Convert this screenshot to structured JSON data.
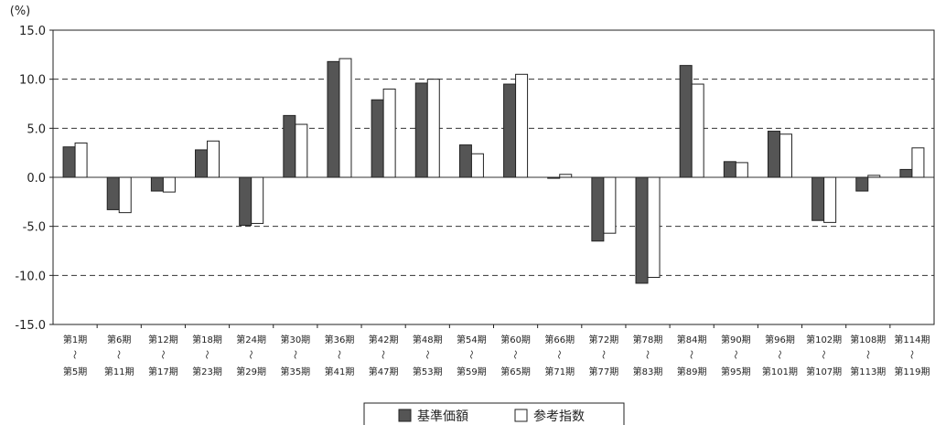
{
  "chart_data": {
    "type": "bar",
    "title": "",
    "xlabel": "",
    "ylabel": "",
    "unit_label": "(%)",
    "ylim": [
      -15.0,
      15.0
    ],
    "yticks": [
      "15.0",
      "10.0",
      "5.0",
      "0.0",
      "-5.0",
      "-10.0",
      "-15.0"
    ],
    "ytick_values": [
      15,
      10,
      5,
      0,
      -5,
      -10,
      -15
    ],
    "grid": "dashed-horizontal",
    "legend_position": "bottom-center",
    "categories": [
      {
        "top": "第1期",
        "sep": "〜",
        "bottom": "第5期"
      },
      {
        "top": "第6期",
        "sep": "〜",
        "bottom": "第11期"
      },
      {
        "top": "第12期",
        "sep": "〜",
        "bottom": "第17期"
      },
      {
        "top": "第18期",
        "sep": "〜",
        "bottom": "第23期"
      },
      {
        "top": "第24期",
        "sep": "〜",
        "bottom": "第29期"
      },
      {
        "top": "第30期",
        "sep": "〜",
        "bottom": "第35期"
      },
      {
        "top": "第36期",
        "sep": "〜",
        "bottom": "第41期"
      },
      {
        "top": "第42期",
        "sep": "〜",
        "bottom": "第47期"
      },
      {
        "top": "第48期",
        "sep": "〜",
        "bottom": "第53期"
      },
      {
        "top": "第54期",
        "sep": "〜",
        "bottom": "第59期"
      },
      {
        "top": "第60期",
        "sep": "〜",
        "bottom": "第65期"
      },
      {
        "top": "第66期",
        "sep": "〜",
        "bottom": "第71期"
      },
      {
        "top": "第72期",
        "sep": "〜",
        "bottom": "第77期"
      },
      {
        "top": "第78期",
        "sep": "〜",
        "bottom": "第83期"
      },
      {
        "top": "第84期",
        "sep": "〜",
        "bottom": "第89期"
      },
      {
        "top": "第90期",
        "sep": "〜",
        "bottom": "第95期"
      },
      {
        "top": "第96期",
        "sep": "〜",
        "bottom": "第101期"
      },
      {
        "top": "第102期",
        "sep": "〜",
        "bottom": "第107期"
      },
      {
        "top": "第108期",
        "sep": "〜",
        "bottom": "第113期"
      },
      {
        "top": "第114期",
        "sep": "〜",
        "bottom": "第119期"
      }
    ],
    "series": [
      {
        "name": "基準価額",
        "color": "#555555",
        "values": [
          3.1,
          -3.3,
          -1.4,
          2.8,
          -4.9,
          6.3,
          11.8,
          7.9,
          9.6,
          3.3,
          9.5,
          -0.1,
          -6.5,
          -10.8,
          11.4,
          1.6,
          4.7,
          -4.4,
          -1.4,
          0.8
        ]
      },
      {
        "name": "参考指数",
        "color": "#ffffff",
        "values": [
          3.5,
          -3.6,
          -1.5,
          3.7,
          -4.7,
          5.4,
          12.1,
          9.0,
          10.0,
          2.4,
          10.5,
          0.3,
          -5.7,
          -10.2,
          9.5,
          1.5,
          4.4,
          -4.6,
          0.2,
          3.0
        ]
      }
    ]
  }
}
